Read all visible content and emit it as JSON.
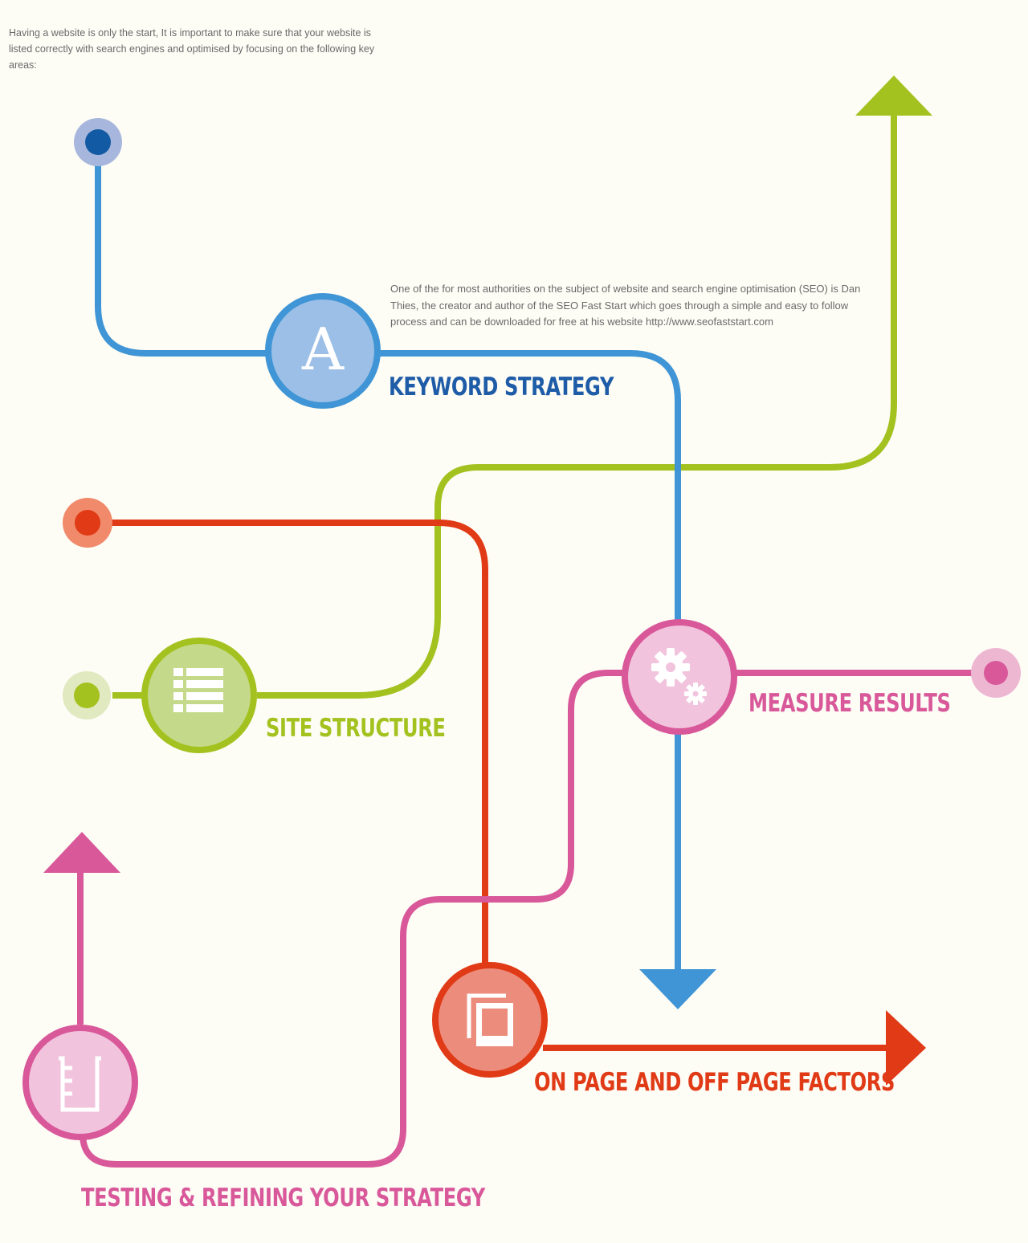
{
  "intro_text": "Having a website is only the start, It is important to make sure that your website is listed correctly with search engines and optimised by focusing on the following key areas:",
  "author_note": "One of the for most authorities on the subject of website and search engine optimisation (SEO) is Dan Thies, the creator and author of the SEO Fast Start which goes through a simple and easy to follow process and can be downloaded for free at his website http://www.seofaststart.com",
  "stages": {
    "keyword_strategy": {
      "label": "KEYWORD STRATEGY",
      "icon": "letter-a-icon",
      "icon_letter": "A",
      "color": "#1e5ca8",
      "line_color": "#3f95d5",
      "node_fill": "#9bbfe6"
    },
    "site_structure": {
      "label": "SITE STRUCTURE",
      "icon": "list-icon",
      "color": "#a3c21f",
      "line_color": "#a3c21f",
      "node_fill": "#c5d98a"
    },
    "measure_results": {
      "label": "MEASURE RESULTS",
      "icon": "gears-icon",
      "color": "#d8589a",
      "line_color": "#d8589a",
      "node_fill": "#f2c3dd"
    },
    "on_off_page": {
      "label": "ON PAGE AND OFF PAGE FACTORS",
      "icon": "pages-icon",
      "color": "#e03a16",
      "line_color": "#e03a16",
      "node_fill": "#ec8c7c"
    },
    "testing_refining": {
      "label": "TESTING & REFINING YOUR STRATEGY",
      "icon": "beaker-icon",
      "color": "#d8589a",
      "line_color": "#d8589a",
      "node_fill": "#f2c3dd"
    }
  }
}
